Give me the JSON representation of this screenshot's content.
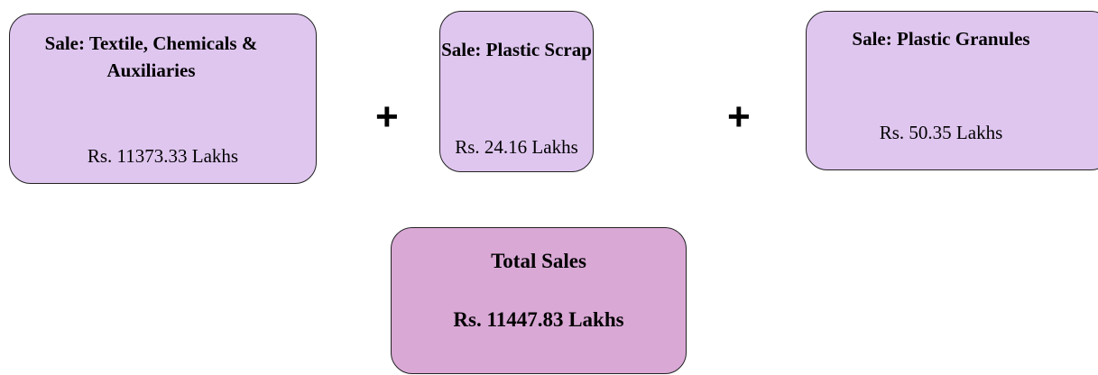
{
  "nodes": [
    {
      "title": "Sale: Textile, Chemicals & Auxiliaries",
      "value": "Rs. 11373.33 Lakhs"
    },
    {
      "title": "Sale: Plastic Scrap",
      "value": "Rs. 24.16 Lakhs"
    },
    {
      "title": "Sale: Plastic Granules",
      "value": "Rs. 50.35 Lakhs"
    }
  ],
  "operators": [
    "+",
    "+"
  ],
  "total": {
    "title": "Total Sales",
    "value": "Rs. 11447.83 Lakhs"
  }
}
